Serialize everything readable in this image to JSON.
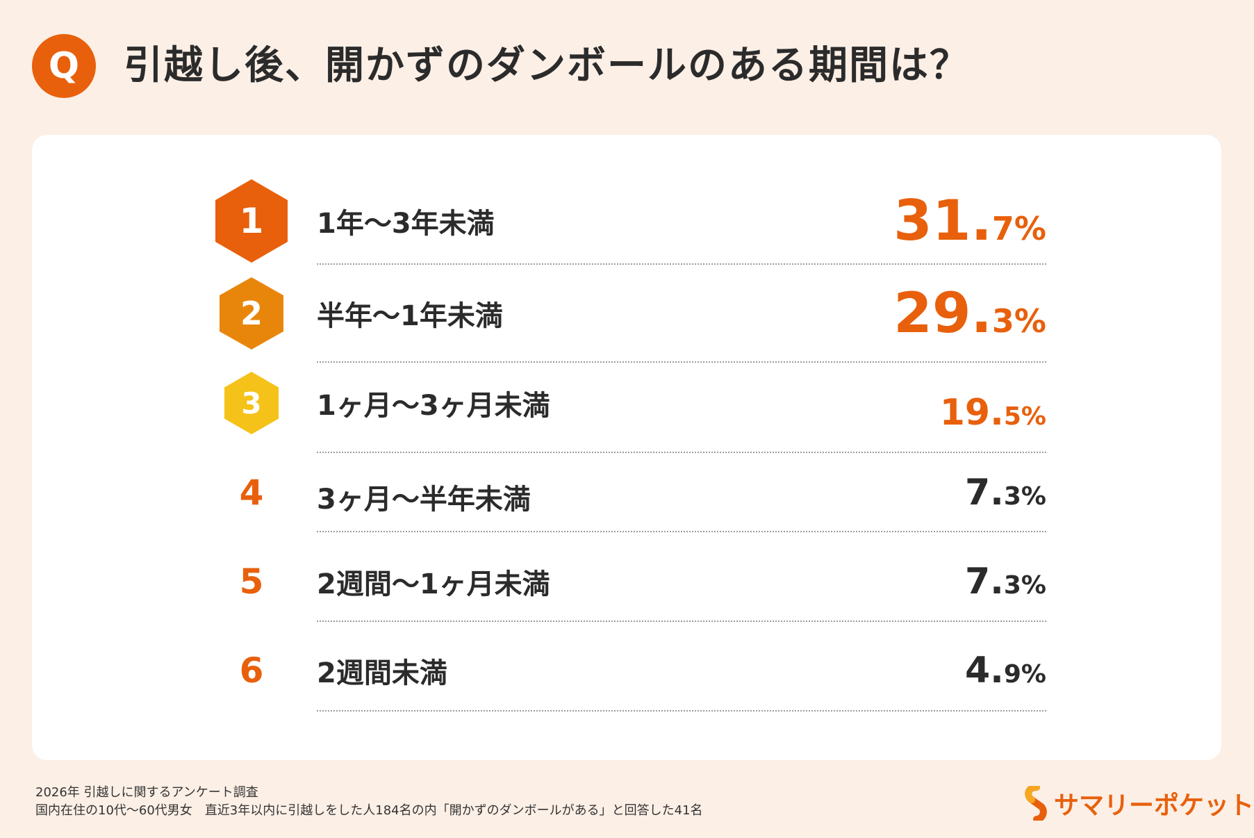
{
  "header": {
    "q_label": "Q",
    "title": "引越し後、開かずのダンボールのある期間は？"
  },
  "ranking": [
    {
      "rank": "1",
      "label": "1年〜3年未満",
      "value_int": "31.",
      "value_dec": "7%",
      "badge_color": "#e8600c"
    },
    {
      "rank": "2",
      "label": "半年〜1年未満",
      "value_int": "29.",
      "value_dec": "3%",
      "badge_color": "#e8860c"
    },
    {
      "rank": "3",
      "label": "1ヶ月〜3ヶ月未満",
      "value_int": "19.",
      "value_dec": "5%",
      "badge_color": "#f5c21a"
    },
    {
      "rank": "4",
      "label": "3ヶ月〜半年未満",
      "value_int": "7.",
      "value_dec": "3%"
    },
    {
      "rank": "5",
      "label": "2週間〜1ヶ月未満",
      "value_int": "7.",
      "value_dec": "3%"
    },
    {
      "rank": "6",
      "label": "2週間未満",
      "value_int": "4.",
      "value_dec": "9%"
    }
  ],
  "footer": {
    "line1": "2026年  引越しに関するアンケート調査",
    "line2": "国内在住の10代〜60代男女　直近3年以内に引越しをした人184名の内「開かずのダンボールがある」と回答した41名"
  },
  "logo": {
    "text": "サマリーポケット"
  },
  "colors": {
    "accent": "#e8600c",
    "background": "#fcefe6"
  }
}
